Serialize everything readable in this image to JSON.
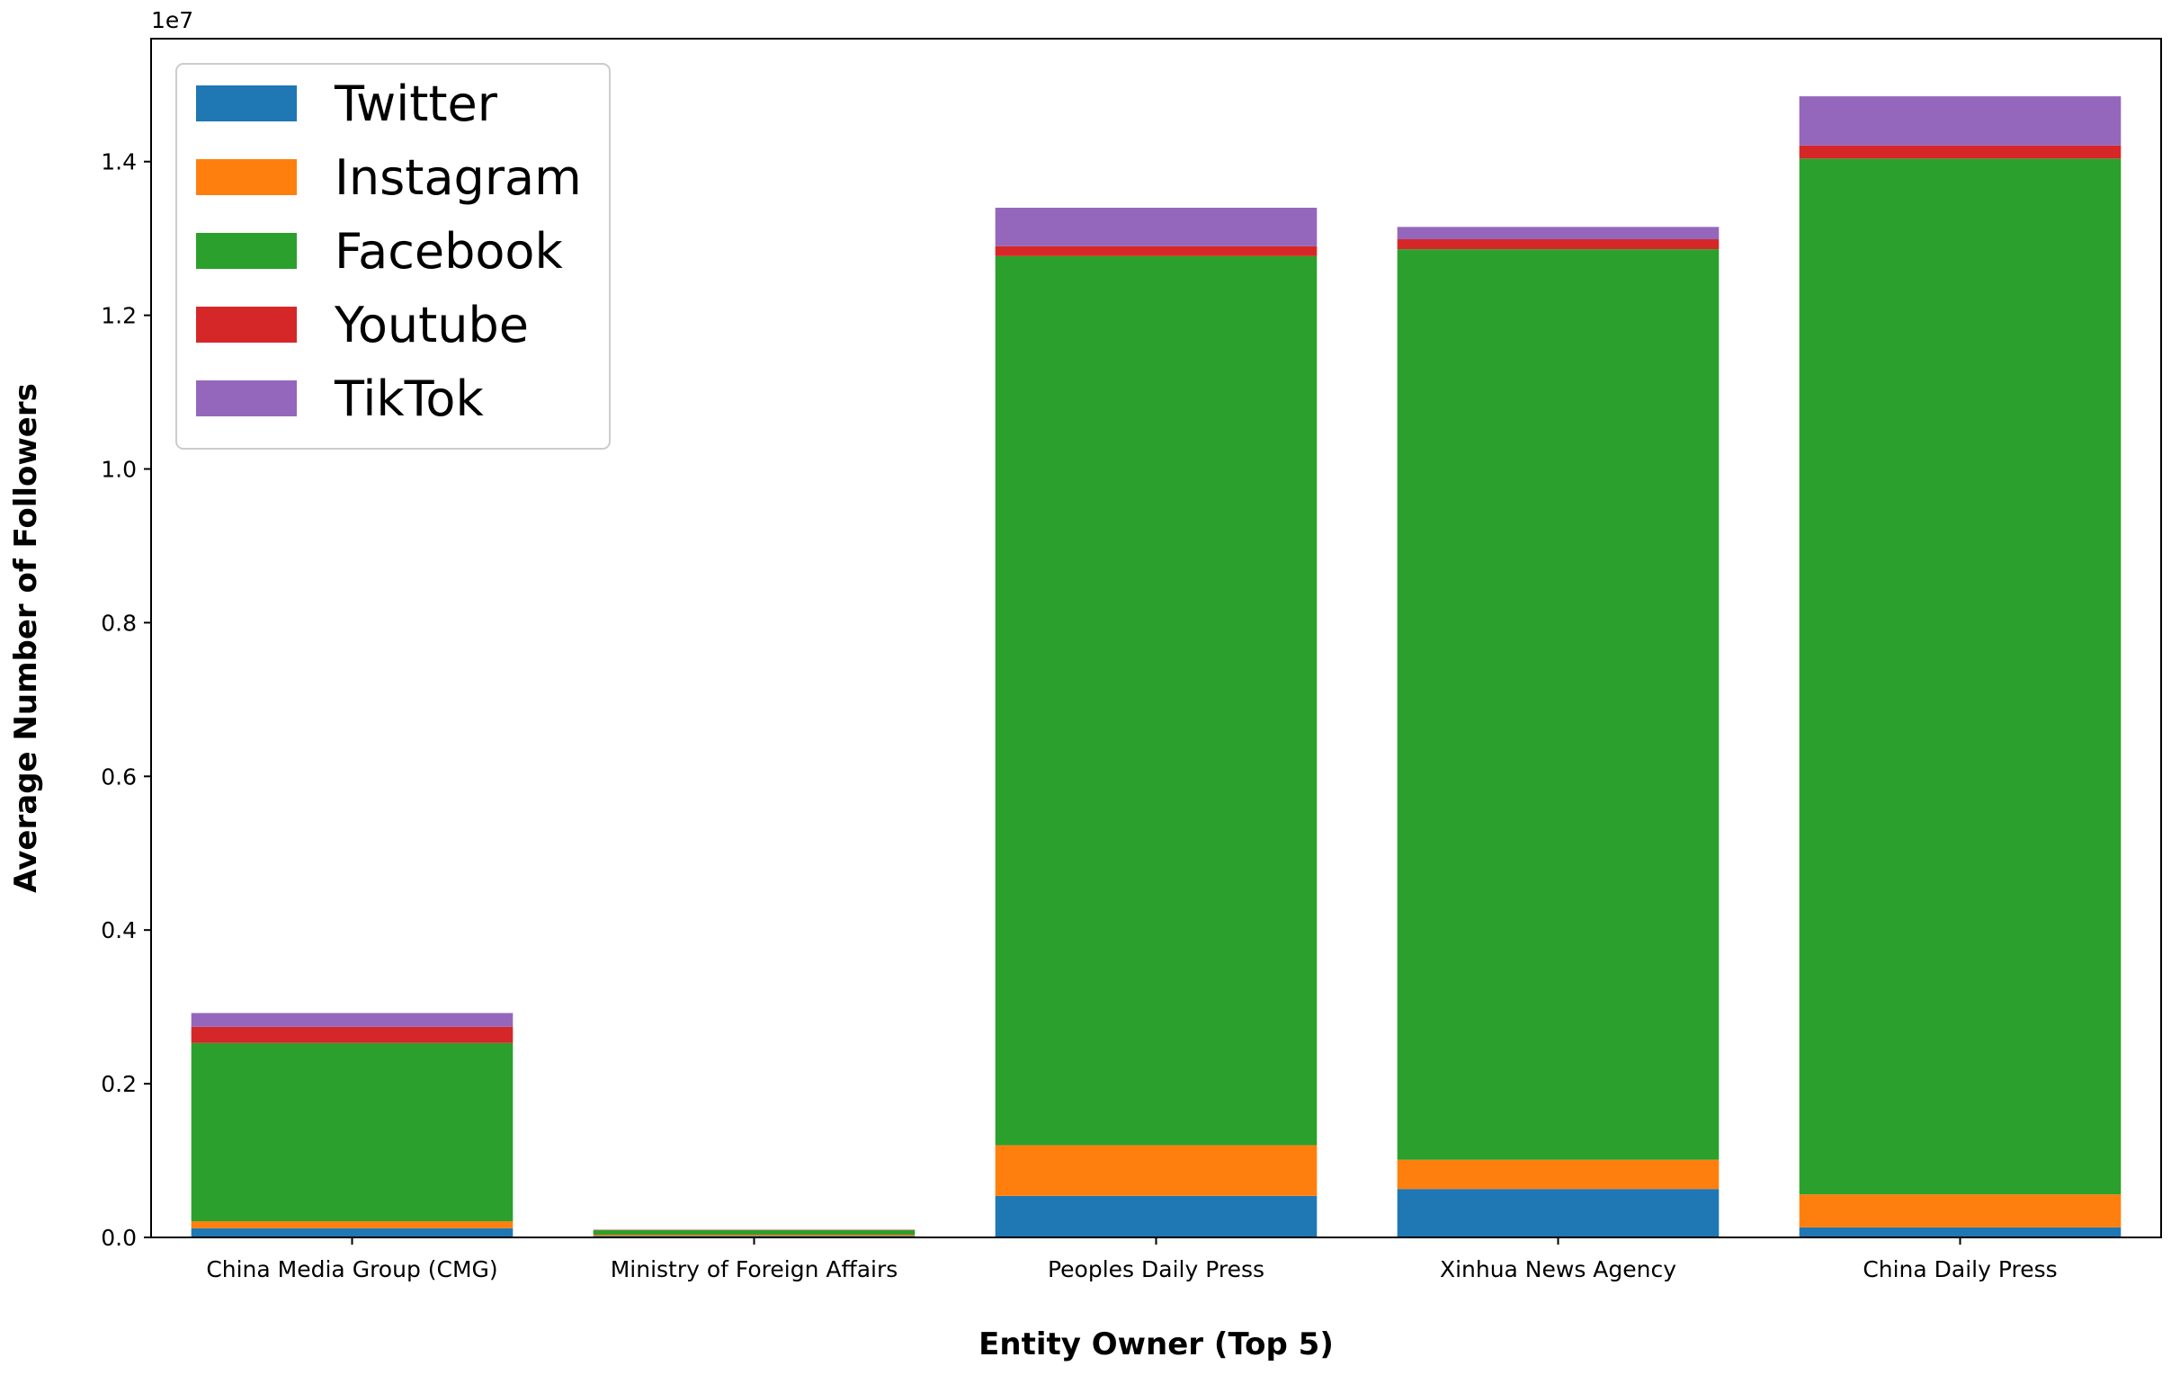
{
  "chart_data": {
    "type": "bar",
    "stacked": true,
    "title": "",
    "xlabel": "Entity Owner (Top 5)",
    "ylabel": "Average Number of Followers",
    "y_offset_label": "1e7",
    "categories": [
      "China Media Group (CMG)",
      "Ministry of Foreign Affairs",
      "Peoples Daily Press",
      "Xinhua News Agency",
      "China Daily Press"
    ],
    "series": [
      {
        "name": "Twitter",
        "color": "#1f77b4",
        "values": [
          120000,
          20000,
          540000,
          630000,
          130000
        ]
      },
      {
        "name": "Instagram",
        "color": "#ff7f0e",
        "values": [
          90000,
          15000,
          660000,
          380000,
          430000
        ]
      },
      {
        "name": "Facebook",
        "color": "#2ca02c",
        "values": [
          2320000,
          60000,
          11570000,
          11850000,
          13480000
        ]
      },
      {
        "name": "Youtube",
        "color": "#d62728",
        "values": [
          210000,
          5000,
          130000,
          130000,
          170000
        ]
      },
      {
        "name": "TikTok",
        "color": "#9467bd",
        "values": [
          180000,
          0,
          500000,
          160000,
          640000
        ]
      }
    ],
    "ylim": [
      0,
      15600000
    ],
    "yticks": [
      0,
      2000000,
      4000000,
      6000000,
      8000000,
      10000000,
      12000000,
      14000000
    ],
    "ytick_labels": [
      "0.0",
      "0.2",
      "0.4",
      "0.6",
      "0.8",
      "1.0",
      "1.2",
      "1.4"
    ],
    "legend_position": "top-left",
    "grid": false
  }
}
